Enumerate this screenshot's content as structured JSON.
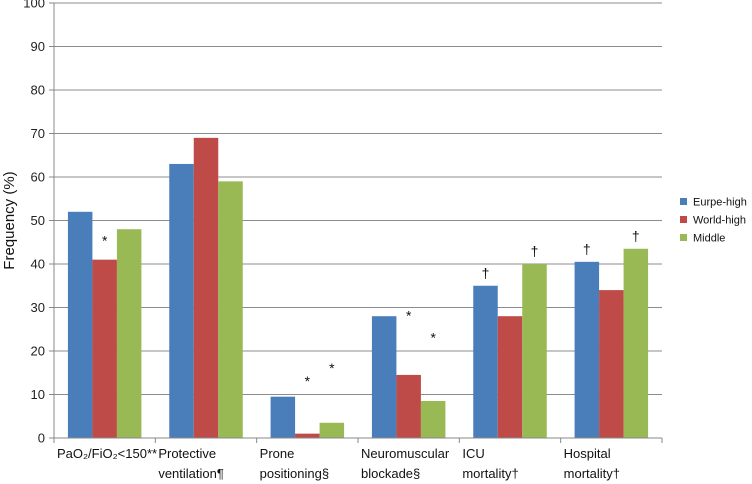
{
  "chart_data": {
    "type": "bar",
    "title": "",
    "xlabel": "",
    "ylabel": "Frequency (%)",
    "ylim": [
      0,
      100
    ],
    "yticks": [
      0,
      10,
      20,
      30,
      40,
      50,
      60,
      70,
      80,
      90,
      100
    ],
    "grid": true,
    "legend_position": "right",
    "categories": [
      [
        "PaO₂/FiO₂<150**"
      ],
      [
        "Protective",
        "ventilation¶"
      ],
      [
        "Prone",
        "positioning§"
      ],
      [
        "Neuromuscular",
        "blockade§"
      ],
      [
        "ICU",
        "mortality†"
      ],
      [
        "Hospital",
        "mortality†"
      ]
    ],
    "series": [
      {
        "name": "Eurpe-high",
        "color": "#4a7ebb",
        "values": [
          52,
          63,
          9.5,
          28,
          35,
          40.5
        ]
      },
      {
        "name": "World-high",
        "color": "#be4b48",
        "values": [
          41,
          69,
          1,
          14.5,
          28,
          34
        ]
      },
      {
        "name": "Middle",
        "color": "#98b954",
        "values": [
          48,
          59,
          3.5,
          8.5,
          40,
          43.5
        ]
      }
    ],
    "annotations": [
      {
        "category": 0,
        "series": 1,
        "text": "*"
      },
      {
        "category": 2,
        "series": 1,
        "text": "*"
      },
      {
        "category": 2,
        "series": 2,
        "text": "*"
      },
      {
        "category": 3,
        "series": 1,
        "text": "*"
      },
      {
        "category": 3,
        "series": 2,
        "text": "*"
      },
      {
        "category": 4,
        "series": 0,
        "text": "†"
      },
      {
        "category": 4,
        "series": 2,
        "text": "†"
      },
      {
        "category": 5,
        "series": 0,
        "text": "†"
      },
      {
        "category": 5,
        "series": 2,
        "text": "†"
      }
    ]
  }
}
